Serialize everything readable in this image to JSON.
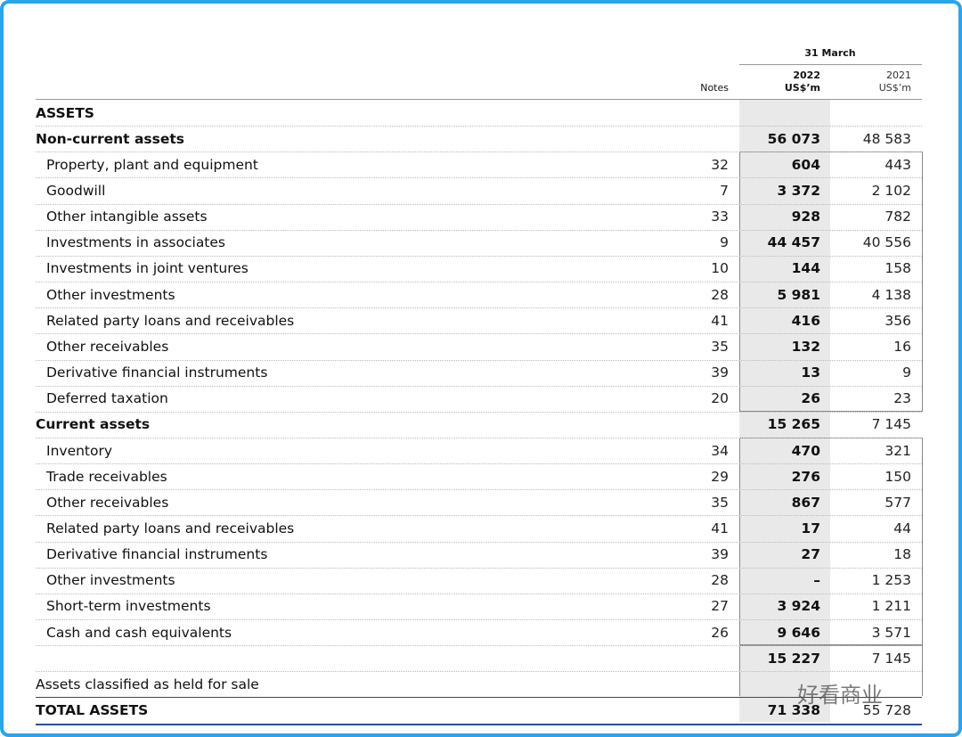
{
  "header": {
    "period": "31 March",
    "notes": "Notes",
    "col2022_year": "2022",
    "col2022_unit": "US$’m",
    "col2021_year": "2021",
    "col2021_unit": "US$’m"
  },
  "table": {
    "rows": [
      {
        "label": "ASSETS"
      },
      {
        "label": "Non-current assets",
        "y2022": "56 073",
        "y2021": "48 583"
      },
      {
        "label": "Property, plant and equipment",
        "notes": "32",
        "y2022": "604",
        "y2021": "443"
      },
      {
        "label": "Goodwill",
        "notes": "7",
        "y2022": "3 372",
        "y2021": "2 102"
      },
      {
        "label": "Other intangible assets",
        "notes": "33",
        "y2022": "928",
        "y2021": "782"
      },
      {
        "label": "Investments in associates",
        "notes": "9",
        "y2022": "44 457",
        "y2021": "40 556"
      },
      {
        "label": "Investments in joint ventures",
        "notes": "10",
        "y2022": "144",
        "y2021": "158"
      },
      {
        "label": "Other investments",
        "notes": "28",
        "y2022": "5 981",
        "y2021": "4 138"
      },
      {
        "label": "Related party loans and receivables",
        "notes": "41",
        "y2022": "416",
        "y2021": "356"
      },
      {
        "label": "Other receivables",
        "notes": "35",
        "y2022": "132",
        "y2021": "16"
      },
      {
        "label": "Derivative financial instruments",
        "notes": "39",
        "y2022": "13",
        "y2021": "9"
      },
      {
        "label": "Deferred taxation",
        "notes": "20",
        "y2022": "26",
        "y2021": "23"
      },
      {
        "label": "Current assets",
        "y2022": "15 265",
        "y2021": "7 145"
      },
      {
        "label": "Inventory",
        "notes": "34",
        "y2022": "470",
        "y2021": "321"
      },
      {
        "label": "Trade receivables",
        "notes": "29",
        "y2022": "276",
        "y2021": "150"
      },
      {
        "label": "Other receivables",
        "notes": "35",
        "y2022": "867",
        "y2021": "577"
      },
      {
        "label": "Related party loans and receivables",
        "notes": "41",
        "y2022": "17",
        "y2021": "44"
      },
      {
        "label": "Derivative financial instruments",
        "notes": "39",
        "y2022": "27",
        "y2021": "18"
      },
      {
        "label": "Other investments",
        "notes": "28",
        "y2022": "–",
        "y2021": "1 253"
      },
      {
        "label": "Short-term investments",
        "notes": "27",
        "y2022": "3 924",
        "y2021": "1 211"
      },
      {
        "label": "Cash and cash equivalents",
        "notes": "26",
        "y2022": "9 646",
        "y2021": "3 571"
      },
      {
        "y2022": "15 227",
        "y2021": "7 145"
      },
      {
        "label": "Assets classified as held for sale"
      },
      {
        "label": "TOTAL ASSETS",
        "y2022": "71 338",
        "y2021": "55 728"
      }
    ]
  },
  "watermark": "好看商业"
}
